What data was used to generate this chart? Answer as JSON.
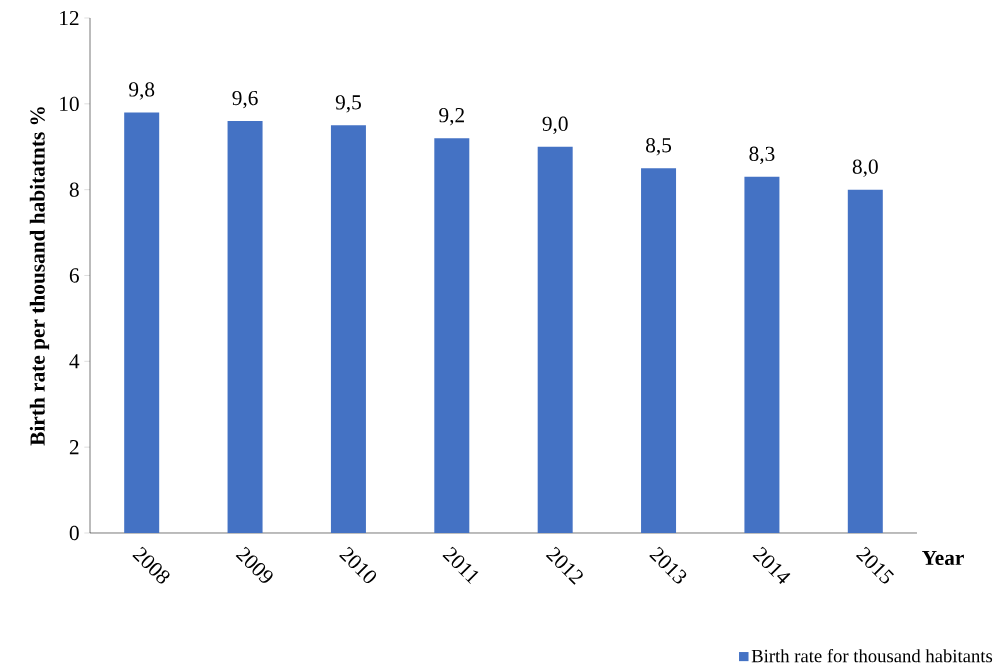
{
  "chart_data": {
    "type": "bar",
    "xlabel": "Year",
    "ylabel": "Birth rate per thousand habitatnts %",
    "categories": [
      "2008",
      "2009",
      "2010",
      "2011",
      "2012",
      "2013",
      "2014",
      "2015"
    ],
    "series": [
      {
        "name": "Birth rate for thousand habitants",
        "color": "#4472c4",
        "values": [
          9.8,
          9.6,
          9.5,
          9.2,
          9.0,
          8.5,
          8.3,
          8.0
        ],
        "value_labels": [
          "9,8",
          "9,6",
          "9,5",
          "9,2",
          "9,0",
          "8,5",
          "8,3",
          "8,0"
        ]
      }
    ],
    "ylim": [
      0,
      12
    ],
    "yticks": [
      0,
      2,
      4,
      6,
      8,
      10,
      12
    ],
    "grid": false,
    "legend": "bottom right"
  }
}
